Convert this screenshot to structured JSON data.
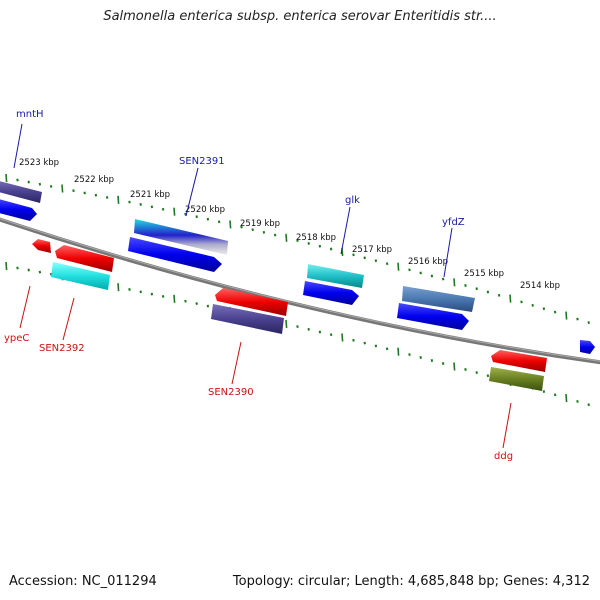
{
  "title": "Salmonella enterica subsp. enterica serovar Enteritidis str....",
  "footer": {
    "accession": "Accession: NC_011294",
    "summary": "Topology: circular; Length: 4,685,848 bp; Genes: 4,312"
  },
  "scale_labels": [
    "2523 kbp",
    "2522 kbp",
    "2521 kbp",
    "2520 kbp",
    "2519 kbp",
    "2518 kbp",
    "2517 kbp",
    "2516 kbp",
    "2515 kbp",
    "2514 kbp"
  ],
  "colors": {
    "plus_label": "#1a1aa6",
    "minus_label": "#cc1111",
    "backbone": "#777777",
    "ticks": "#1f7a1f"
  },
  "gene_labels": [
    {
      "text": "mntH",
      "strand": "plus"
    },
    {
      "text": "SEN2391",
      "strand": "plus"
    },
    {
      "text": "glk",
      "strand": "plus"
    },
    {
      "text": "yfdZ",
      "strand": "plus"
    },
    {
      "text": "ypeC",
      "strand": "minus"
    },
    {
      "text": "SEN2392",
      "strand": "minus"
    },
    {
      "text": "SEN2390",
      "strand": "minus"
    },
    {
      "text": "ddg",
      "strand": "minus"
    }
  ]
}
